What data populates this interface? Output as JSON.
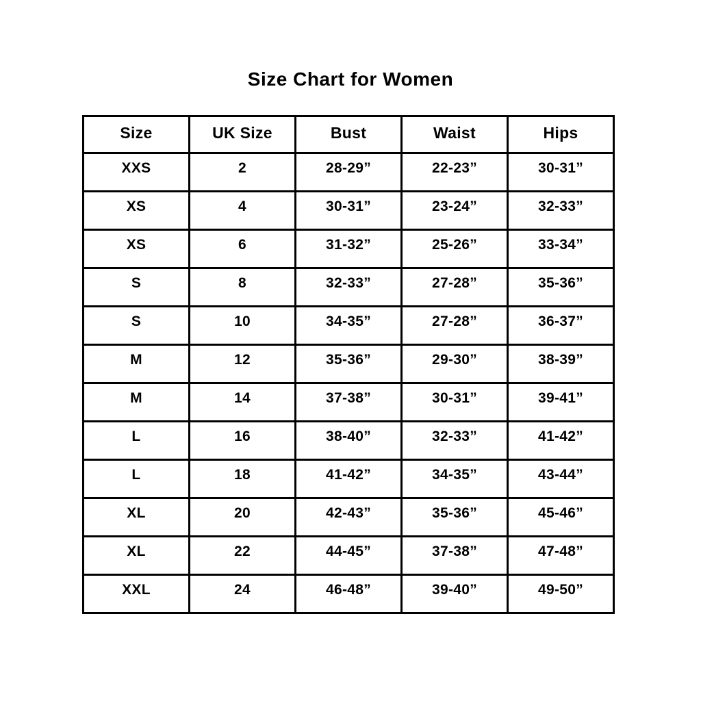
{
  "title": "Size Chart for Women",
  "colors": {
    "background": "#ffffff",
    "text": "#000000",
    "border": "#000000"
  },
  "chart_data": {
    "type": "table",
    "title": "Size Chart for Women",
    "columns": [
      "Size",
      "UK Size",
      "Bust",
      "Waist",
      "Hips"
    ],
    "rows": [
      [
        "XXS",
        "2",
        "28-29”",
        "22-23”",
        "30-31”"
      ],
      [
        "XS",
        "4",
        "30-31”",
        "23-24”",
        "32-33”"
      ],
      [
        "XS",
        "6",
        "31-32”",
        "25-26”",
        "33-34”"
      ],
      [
        "S",
        "8",
        "32-33”",
        "27-28”",
        "35-36”"
      ],
      [
        "S",
        "10",
        "34-35”",
        "27-28”",
        "36-37”"
      ],
      [
        "M",
        "12",
        "35-36”",
        "29-30”",
        "38-39”"
      ],
      [
        "M",
        "14",
        "37-38”",
        "30-31”",
        "39-41”"
      ],
      [
        "L",
        "16",
        "38-40”",
        "32-33”",
        "41-42”"
      ],
      [
        "L",
        "18",
        "41-42”",
        "34-35”",
        "43-44”"
      ],
      [
        "XL",
        "20",
        "42-43”",
        "35-36”",
        "45-46”"
      ],
      [
        "XL",
        "22",
        "44-45”",
        "37-38”",
        "47-48”"
      ],
      [
        "XXL",
        "24",
        "46-48”",
        "39-40”",
        "49-50”"
      ]
    ]
  }
}
